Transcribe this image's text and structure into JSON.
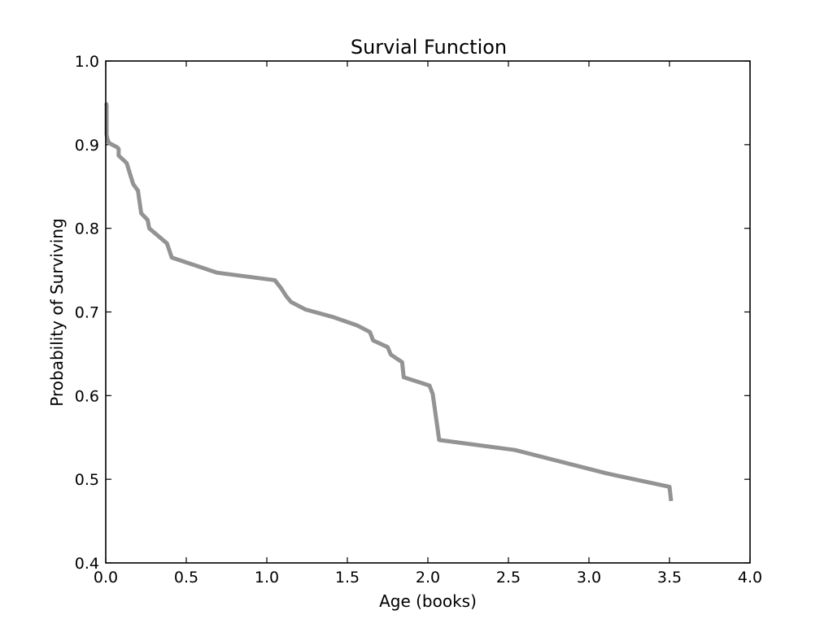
{
  "chart_data": {
    "type": "line",
    "title": "Survial Function",
    "xlabel": "Age (books)",
    "ylabel": "Probability of Surviving",
    "xlim": [
      0.0,
      4.0
    ],
    "ylim": [
      0.4,
      1.0
    ],
    "xticks": [
      {
        "value": 0.0,
        "label": "0.0"
      },
      {
        "value": 0.5,
        "label": "0.5"
      },
      {
        "value": 1.0,
        "label": "1.0"
      },
      {
        "value": 1.5,
        "label": "1.5"
      },
      {
        "value": 2.0,
        "label": "2.0"
      },
      {
        "value": 2.5,
        "label": "2.5"
      },
      {
        "value": 3.0,
        "label": "3.0"
      },
      {
        "value": 3.5,
        "label": "3.5"
      },
      {
        "value": 4.0,
        "label": "4.0"
      }
    ],
    "yticks": [
      {
        "value": 0.4,
        "label": "0.4"
      },
      {
        "value": 0.5,
        "label": "0.5"
      },
      {
        "value": 0.6,
        "label": "0.6"
      },
      {
        "value": 0.7,
        "label": "0.7"
      },
      {
        "value": 0.8,
        "label": "0.8"
      },
      {
        "value": 0.9,
        "label": "0.9"
      },
      {
        "value": 1.0,
        "label": "1.0"
      }
    ],
    "grid": false,
    "legend": "none",
    "series": [
      {
        "color": "#939393",
        "x": [
          0.0,
          0.005,
          0.005,
          0.01,
          0.02,
          0.07,
          0.08,
          0.08,
          0.13,
          0.17,
          0.2,
          0.22,
          0.26,
          0.27,
          0.38,
          0.41,
          0.69,
          1.05,
          1.09,
          1.12,
          1.15,
          1.24,
          1.41,
          1.56,
          1.64,
          1.66,
          1.75,
          1.77,
          1.84,
          1.85,
          2.01,
          2.03,
          2.07,
          2.54,
          3.11,
          3.5,
          3.51
        ],
        "y": [
          0.95,
          0.948,
          0.912,
          0.907,
          0.902,
          0.897,
          0.895,
          0.887,
          0.878,
          0.853,
          0.845,
          0.818,
          0.81,
          0.8,
          0.782,
          0.765,
          0.747,
          0.738,
          0.728,
          0.719,
          0.712,
          0.703,
          0.694,
          0.684,
          0.676,
          0.666,
          0.658,
          0.649,
          0.64,
          0.622,
          0.612,
          0.602,
          0.547,
          0.535,
          0.507,
          0.491,
          0.474
        ]
      }
    ]
  }
}
